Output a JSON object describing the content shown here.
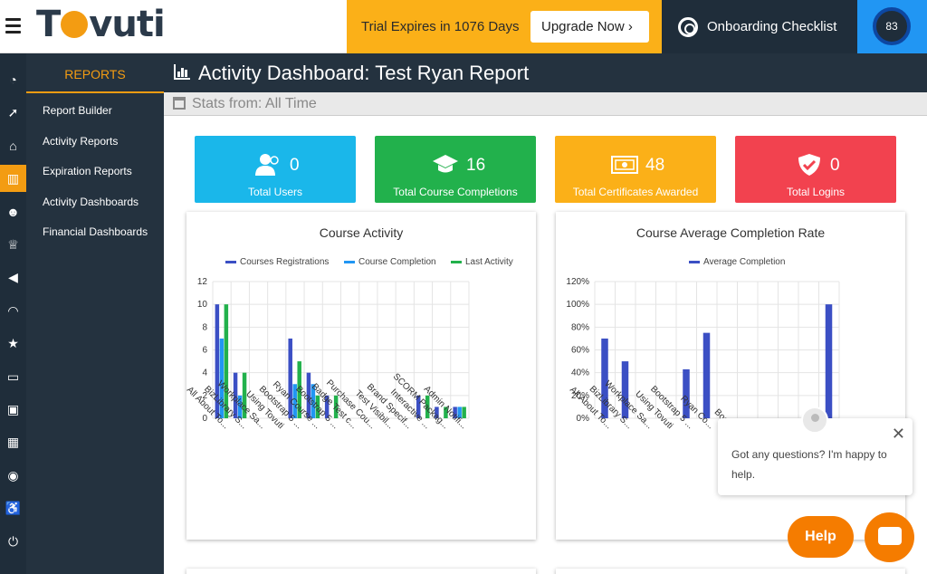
{
  "topbar": {
    "logo": "Tovuti",
    "trial_text": "Trial Expires in 1076 Days",
    "upgrade_label": "Upgrade Now",
    "onboarding_label": "Onboarding Checklist",
    "score": "83"
  },
  "rail": {
    "icons": [
      "dashboard-icon",
      "rocket-icon",
      "graduation-cap-icon",
      "bar-chart-icon",
      "users-icon",
      "trophy-icon",
      "megaphone-icon",
      "rss-icon",
      "star-icon",
      "credit-card-icon",
      "contact-icon",
      "calendar-icon",
      "chat-icon",
      "accessibility-icon",
      "power-icon"
    ],
    "active_index": 3
  },
  "sidebar": {
    "heading": "REPORTS",
    "items": [
      {
        "label": "Report Builder"
      },
      {
        "label": "Activity Reports"
      },
      {
        "label": "Expiration Reports"
      },
      {
        "label": "Activity Dashboards"
      },
      {
        "label": "Financial Dashboards"
      }
    ]
  },
  "header": {
    "title": "Activity Dashboard: Test Ryan Report",
    "stats_label": "Stats from: All Time"
  },
  "stats": [
    {
      "value": "0",
      "label": "Total Users",
      "color": "#1ab7ea",
      "icon": "users-icon"
    },
    {
      "value": "16",
      "label": "Total Course Completions",
      "color": "#22b14c",
      "icon": "graduation-cap-icon"
    },
    {
      "value": "48",
      "label": "Total Certificates Awarded",
      "color": "#fbb018",
      "icon": "certificate-icon"
    },
    {
      "value": "0",
      "label": "Total Logins",
      "color": "#f2424f",
      "icon": "shield-check-icon"
    }
  ],
  "chart_data": [
    {
      "type": "bar",
      "title": "Course Activity",
      "categories": [
        "All About To...",
        "BizLibrary S...",
        "Workplace Sa...",
        "Using Tovuti",
        "Bootstrap 5 ...",
        "Ryan Course ...",
        "Bootstrap 5 ...",
        "Badge Test c...",
        "Purchase Cou...",
        "Test Visibil...",
        "Brand Specif...",
        "Interactive ...",
        "SCORM Packag...",
        "Admin Notifi..."
      ],
      "series": [
        {
          "name": "Courses Registrations",
          "color": "#3b4fc4",
          "values": [
            10,
            4,
            0,
            0,
            7,
            4,
            2,
            0,
            0,
            0,
            0,
            2,
            1,
            1
          ]
        },
        {
          "name": "Course Completion",
          "color": "#2196f3",
          "values": [
            7,
            2,
            0,
            0,
            3,
            3,
            0,
            0,
            0,
            0,
            0,
            0,
            0,
            1
          ]
        },
        {
          "name": "Last Activity",
          "color": "#22b14c",
          "values": [
            10,
            4,
            0,
            0,
            5,
            2,
            2,
            0,
            0,
            0,
            0,
            2,
            1,
            1
          ]
        }
      ],
      "ylim": [
        0,
        12
      ],
      "yticks": [
        "0",
        "2",
        "4",
        "6",
        "8",
        "10",
        "12"
      ],
      "grid": true,
      "legend": "top"
    },
    {
      "type": "bar",
      "title": "Course Average Completion Rate",
      "categories": [
        "All About To...",
        "BizLibrary S...",
        "Workplace Sa...",
        "Using Tovuti",
        "Bootstrap 5 ...",
        "Ryan Co...",
        "Boo...",
        "",
        "",
        "",
        "",
        ""
      ],
      "series": [
        {
          "name": "Average Completion",
          "color": "#3b4fc4",
          "values": [
            70,
            50,
            0,
            0,
            43,
            75,
            0,
            0,
            0,
            0,
            0,
            100
          ]
        }
      ],
      "ylim": [
        0,
        120
      ],
      "yticks": [
        "0%",
        "20%",
        "40%",
        "60%",
        "80%",
        "100%",
        "120%"
      ],
      "grid": true,
      "legend": "top"
    }
  ],
  "chat": {
    "message": "Got any questions? I'm happy to help.",
    "close": "✕",
    "help_label": "Help"
  }
}
